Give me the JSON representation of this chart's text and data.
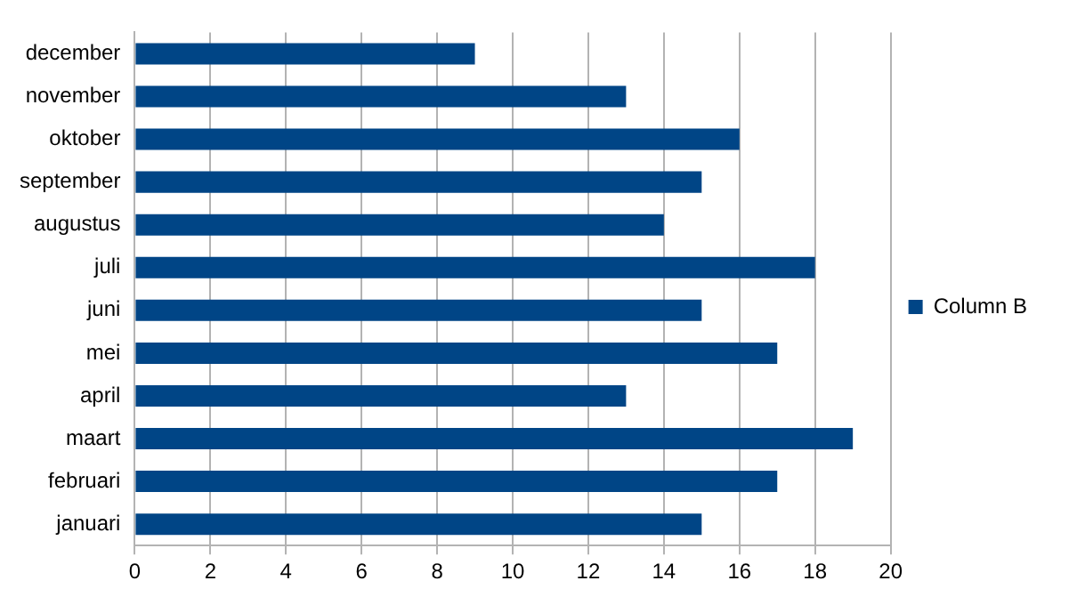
{
  "chart_data": {
    "type": "bar",
    "orientation": "horizontal",
    "categories": [
      "december",
      "november",
      "oktober",
      "september",
      "augustus",
      "juli",
      "juni",
      "mei",
      "april",
      "maart",
      "februari",
      "januari"
    ],
    "series": [
      {
        "name": "Column B",
        "color": "#004586",
        "values": [
          9,
          13,
          16,
          15,
          14,
          18,
          15,
          17,
          13,
          19,
          17,
          15
        ]
      }
    ],
    "xlim": [
      0,
      20
    ],
    "xticks": [
      0,
      2,
      4,
      6,
      8,
      10,
      12,
      14,
      16,
      18,
      20
    ],
    "grid": "x",
    "legend": "right"
  }
}
